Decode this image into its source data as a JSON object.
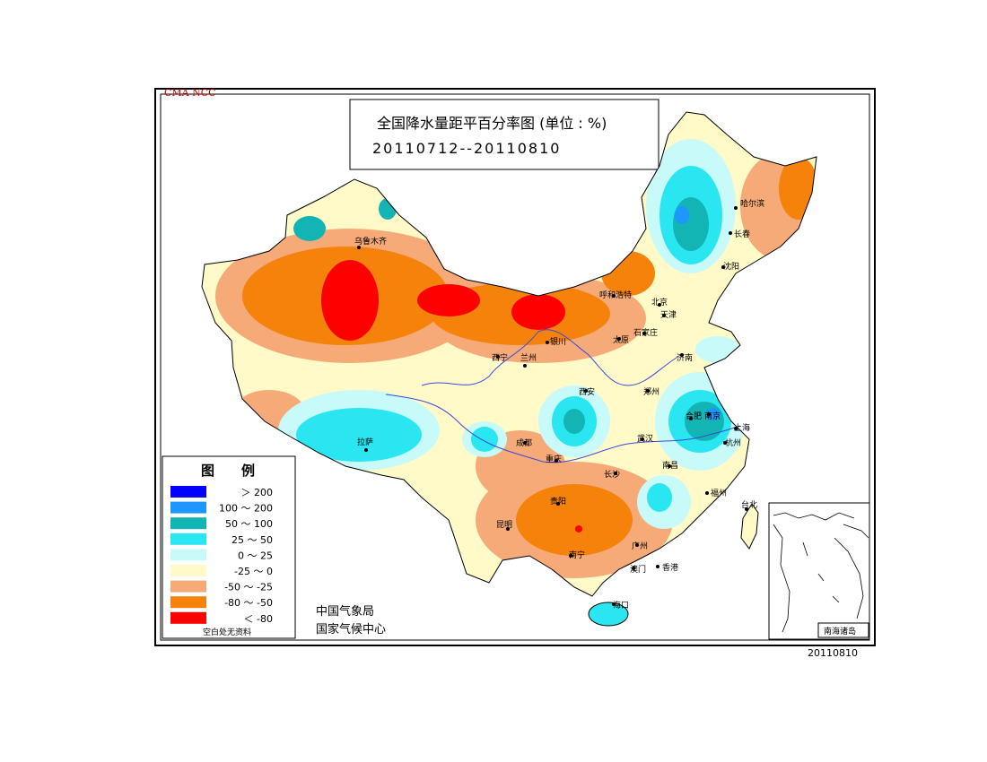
{
  "corner_label": "CMA NCC",
  "title": "全国降水量距平百分率图 (单位 : %)",
  "date_range": "20110712--20110810",
  "footer_date": "20110810",
  "agency": [
    "中国气象局",
    "国家气候中心"
  ],
  "legend": {
    "title": "图　　例",
    "items": [
      {
        "label": "＞ 200",
        "color": "#0000ff"
      },
      {
        "label": "100 ～ 200",
        "color": "#1e96ff"
      },
      {
        "label": "50 ～ 100",
        "color": "#12b4b4"
      },
      {
        "label": "25 ～ 50",
        "color": "#29e6f0"
      },
      {
        "label": "0 ～ 25",
        "color": "#c8fafa"
      },
      {
        "label": "-25 ～ 0",
        "color": "#fffac8"
      },
      {
        "label": "-50 ～ -25",
        "color": "#f5aa78"
      },
      {
        "label": "-80 ～ -50",
        "color": "#f5820a"
      },
      {
        "label": "＜ -80",
        "color": "#ff0000"
      }
    ],
    "note": "空白处无资料"
  },
  "inset_label": "南海诸岛",
  "cities": [
    "乌鲁木齐",
    "哈尔滨",
    "长春",
    "沈阳",
    "呼和浩特",
    "北京",
    "天津",
    "石家庄",
    "太原",
    "济南",
    "银川",
    "西宁",
    "兰州",
    "郑州",
    "西安",
    "合肥",
    "南京",
    "上海",
    "杭州",
    "武汉",
    "成都",
    "重庆",
    "拉萨",
    "贵阳",
    "长沙",
    "南昌",
    "福州",
    "台北",
    "昆明",
    "南宁",
    "广州",
    "澳门",
    "香港",
    "海口"
  ]
}
